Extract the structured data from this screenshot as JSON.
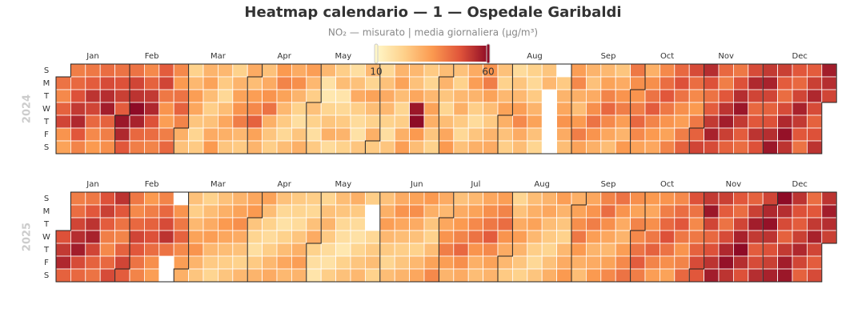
{
  "chart_data": {
    "type": "calendar-heatmap",
    "title": "Heatmap calendario — 1 — Ospedale Garibaldi",
    "subtitle": "NO₂ — misurato  |  media giornaliera (µg/m³)",
    "months": [
      "Jan",
      "Feb",
      "Mar",
      "Apr",
      "May",
      "Jun",
      "Jul",
      "Aug",
      "Sep",
      "Oct",
      "Nov",
      "Dec"
    ],
    "weekdays": [
      "S",
      "M",
      "T",
      "W",
      "T",
      "F",
      "S"
    ],
    "visual_map": {
      "min": 10,
      "max": 60,
      "colors": [
        "#fff7c8",
        "#fed08a",
        "#fb9a50",
        "#e0543a",
        "#8e0b26"
      ]
    },
    "calendars": [
      {
        "year": 2024,
        "values": [
          42,
          38,
          45,
          50,
          36,
          33,
          40,
          44,
          48,
          52,
          55,
          47,
          39,
          41,
          46,
          53,
          50,
          44,
          38,
          35,
          43,
          49,
          54,
          57,
          45,
          40,
          37,
          42,
          48,
          51,
          46,
          58,
          55,
          47,
          42,
          50,
          53,
          60,
          56,
          44,
          40,
          38,
          45,
          52,
          55,
          48,
          43,
          39,
          46,
          50,
          41,
          36,
          34,
          40,
          44,
          38,
          35,
          42,
          45,
          39,
          30,
          26,
          22,
          28,
          34,
          32,
          25,
          21,
          24,
          29,
          33,
          27,
          23,
          26,
          31,
          35,
          28,
          24,
          20,
          27,
          32,
          30,
          25,
          22,
          29,
          33,
          36,
          40,
          28,
          24,
          31,
          27,
          34,
          38,
          45,
          33,
          29,
          26,
          31,
          36,
          42,
          30,
          25,
          23,
          35,
          39,
          33,
          28,
          24,
          20,
          27,
          31,
          37,
          29,
          22,
          18,
          25,
          30,
          34,
          28,
          23,
          26,
          22,
          18,
          24,
          28,
          17,
          15,
          21,
          25,
          30,
          19,
          23,
          27,
          16,
          20,
          24,
          29,
          22,
          18,
          26,
          31,
          23,
          19,
          17,
          25,
          28,
          21,
          33,
          27,
          22,
          30,
          24,
          20,
          26,
          31,
          28,
          22,
          18,
          25,
          29,
          33,
          27,
          21,
          23,
          30,
          34,
          28,
          26,
          32,
          58,
          60,
          35,
          27,
          24,
          21,
          28,
          33,
          30,
          25,
          22,
          27,
          29,
          25,
          21,
          27,
          32,
          35,
          26,
          22,
          28,
          30,
          24,
          20,
          26,
          31,
          34,
          29,
          23,
          19,
          25,
          30,
          36,
          40,
          33,
          27,
          24,
          29,
          31,
          26,
          22,
          28,
          33,
          30,
          26,
          23,
          19,
          25,
          28,
          34,
          38,
          31,
          27,
          22,
          20,
          24,
          29,
          33,
          26,
          21,
          25,
          28,
          null,
          null,
          null,
          null,
          null,
          null,
          24,
          29,
          32,
          36,
          31,
          27,
          34,
          38,
          30,
          27,
          35,
          40,
          33,
          29,
          26,
          31,
          37,
          42,
          36,
          30,
          28,
          33,
          39,
          44,
          38,
          32,
          27,
          25,
          31,
          36,
          40,
          34,
          29,
          35,
          41,
          37,
          36,
          40,
          44,
          38,
          33,
          30,
          37,
          42,
          46,
          39,
          35,
          32,
          38,
          43,
          47,
          41,
          36,
          33,
          39,
          44,
          48,
          42,
          37,
          34,
          40,
          45,
          49,
          43,
          38,
          35,
          41,
          45,
          50,
          54,
          48,
          42,
          46,
          52,
          56,
          49,
          44,
          40,
          47,
          53,
          57,
          51,
          45,
          41,
          48,
          54,
          58,
          52,
          46,
          43,
          49,
          55,
          50,
          44,
          47,
          53,
          48,
          52,
          56,
          50,
          45,
          48,
          54,
          58,
          51,
          46,
          43,
          49,
          55,
          59,
          53,
          47,
          44,
          50,
          56,
          52,
          47,
          42,
          46,
          51,
          55,
          49,
          45,
          48,
          53,
          57,
          54,
          50
        ]
      },
      {
        "year": 2025,
        "values": [
          48,
          52,
          55,
          45,
          40,
          43,
          50,
          54,
          57,
          49,
          44,
          41,
          47,
          53,
          56,
          50,
          45,
          42,
          48,
          51,
          46,
          40,
          38,
          44,
          49,
          53,
          47,
          42,
          39,
          45,
          50,
          46,
          41,
          38,
          44,
          50,
          47,
          42,
          39,
          35,
          40,
          45,
          48,
          43,
          37,
          34,
          39,
          44,
          49,
          53,
          42,
          null,
          null,
          null,
          36,
          41,
          45,
          38,
          34,
          30,
          26,
          23,
          28,
          33,
          36,
          29,
          25,
          22,
          27,
          31,
          34,
          28,
          24,
          21,
          26,
          30,
          35,
          32,
          27,
          23,
          25,
          29,
          33,
          37,
          31,
          26,
          22,
          28,
          32,
          35,
          25,
          21,
          18,
          24,
          29,
          33,
          27,
          22,
          19,
          23,
          28,
          31,
          26,
          20,
          17,
          22,
          27,
          32,
          28,
          24,
          21,
          19,
          25,
          30,
          34,
          29,
          23,
          20,
          26,
          31,
          22,
          18,
          16,
          21,
          26,
          29,
          24,
          19,
          17,
          23,
          27,
          25,
          20,
          18,
          15,
          22,
          26,
          30,
          24,
          19,
          17,
          21,
          25,
          28,
          23,
          null,
          null,
          20,
          24,
          27,
          22,
          26,
          30,
          34,
          28,
          24,
          21,
          27,
          31,
          36,
          32,
          27,
          23,
          25,
          29,
          33,
          37,
          31,
          26,
          22,
          28,
          32,
          35,
          30,
          25,
          22,
          27,
          33,
          38,
          31,
          28,
          32,
          36,
          40,
          34,
          29,
          26,
          31,
          35,
          39,
          44,
          37,
          31,
          28,
          33,
          38,
          42,
          36,
          30,
          27,
          32,
          37,
          41,
          46,
          38,
          33,
          29,
          34,
          39,
          43,
          36,
          31,
          28,
          24,
          21,
          26,
          31,
          34,
          29,
          25,
          22,
          27,
          30,
          33,
          28,
          23,
          20,
          25,
          29,
          32,
          27,
          24,
          21,
          26,
          30,
          34,
          29,
          25,
          22,
          28,
          31,
          35,
          30,
          33,
          37,
          41,
          35,
          30,
          27,
          32,
          36,
          40,
          34,
          29,
          31,
          35,
          39,
          43,
          37,
          32,
          28,
          33,
          38,
          42,
          36,
          31,
          29,
          34,
          38,
          42,
          37,
          33,
          39,
          38,
          42,
          46,
          40,
          35,
          32,
          37,
          41,
          45,
          39,
          34,
          36,
          40,
          44,
          48,
          42,
          37,
          33,
          38,
          43,
          47,
          41,
          36,
          39,
          44,
          48,
          42,
          38,
          41,
          45,
          49,
          47,
          52,
          58,
          50,
          44,
          48,
          53,
          57,
          51,
          46,
          42,
          49,
          55,
          59,
          53,
          47,
          43,
          50,
          56,
          60,
          54,
          48,
          45,
          51,
          57,
          52,
          46,
          49,
          54,
          50,
          55,
          59,
          53,
          48,
          51,
          56,
          60,
          54,
          49,
          45,
          52,
          57,
          58,
          53,
          48,
          46,
          51,
          55,
          50,
          45,
          43,
          47,
          52,
          56,
          50,
          46,
          49,
          53,
          57,
          54,
          51
        ]
      }
    ]
  }
}
